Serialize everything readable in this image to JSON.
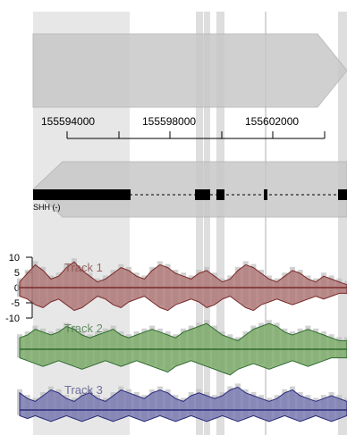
{
  "colors": {
    "background": "#ffffff",
    "highlight": "#d3d3d3",
    "arrow_fill": "#c8c8c8",
    "arrow_stroke": "#b4b4b4",
    "gene": "#000000",
    "bars": "#bdbdbd"
  },
  "ruler": {
    "ticks": [
      "155594000",
      "155598000",
      "155602000"
    ]
  },
  "gene": {
    "label": "SHH (-)",
    "strand": "-"
  },
  "y_axis": {
    "ticks": [
      "10",
      "5",
      "0",
      "-5",
      "-10"
    ]
  },
  "tracks": [
    {
      "label": "Track 1",
      "fill": "#b07a7a",
      "stroke": "#7a2a2a",
      "label_color": "#8a4f4f",
      "values": [
        2,
        5,
        8,
        6,
        3,
        4,
        7,
        9,
        6,
        4,
        2,
        3,
        5,
        7,
        6,
        4,
        3,
        6,
        8,
        7,
        5,
        4,
        3,
        5,
        6,
        4,
        2,
        3,
        6,
        8,
        7,
        5,
        3,
        2,
        4,
        6,
        5,
        3,
        2,
        4,
        3,
        2,
        1
      ],
      "lower": [
        3,
        4,
        6,
        7,
        5,
        4,
        6,
        8,
        7,
        5,
        3,
        4,
        6,
        7,
        5,
        4,
        3,
        5,
        7,
        8,
        6,
        5,
        4,
        5,
        7,
        6,
        4,
        3,
        5,
        7,
        8,
        6,
        5,
        4,
        5,
        6,
        5,
        4,
        3,
        4,
        3,
        2,
        2
      ]
    },
    {
      "label": "Track 2",
      "fill": "#7dab6a",
      "stroke": "#2f6b2f",
      "label_color": "#4f7f4f",
      "values": [
        4,
        5,
        7,
        6,
        5,
        6,
        8,
        7,
        5,
        4,
        5,
        6,
        7,
        5,
        4,
        5,
        6,
        7,
        6,
        5,
        4,
        6,
        7,
        8,
        9,
        7,
        5,
        4,
        3,
        5,
        7,
        8,
        9,
        8,
        6,
        5,
        6,
        7,
        6,
        5,
        4,
        3,
        3
      ],
      "lower": [
        3,
        4,
        5,
        6,
        5,
        4,
        5,
        6,
        7,
        6,
        5,
        4,
        5,
        6,
        5,
        4,
        5,
        6,
        7,
        8,
        6,
        5,
        4,
        5,
        6,
        7,
        8,
        9,
        7,
        6,
        5,
        6,
        7,
        6,
        5,
        4,
        5,
        6,
        5,
        4,
        3,
        3,
        3
      ]
    },
    {
      "label": "Track 3",
      "fill": "#7b7bb3",
      "stroke": "#2a2a7a",
      "label_color": "#5a5a8f",
      "values": [
        6,
        4,
        3,
        5,
        7,
        6,
        4,
        3,
        5,
        6,
        4,
        3,
        5,
        7,
        6,
        5,
        4,
        6,
        7,
        6,
        4,
        3,
        5,
        6,
        5,
        4,
        5,
        7,
        8,
        6,
        5,
        4,
        3,
        4,
        6,
        7,
        5,
        4,
        3,
        4,
        5,
        4,
        3
      ],
      "lower": [
        2,
        3,
        2,
        3,
        4,
        3,
        2,
        3,
        4,
        3,
        2,
        3,
        4,
        3,
        2,
        3,
        4,
        3,
        2,
        3,
        4,
        3,
        2,
        3,
        4,
        3,
        2,
        3,
        4,
        3,
        2,
        3,
        4,
        3,
        2,
        3,
        4,
        3,
        2,
        3,
        4,
        3,
        2
      ]
    }
  ]
}
